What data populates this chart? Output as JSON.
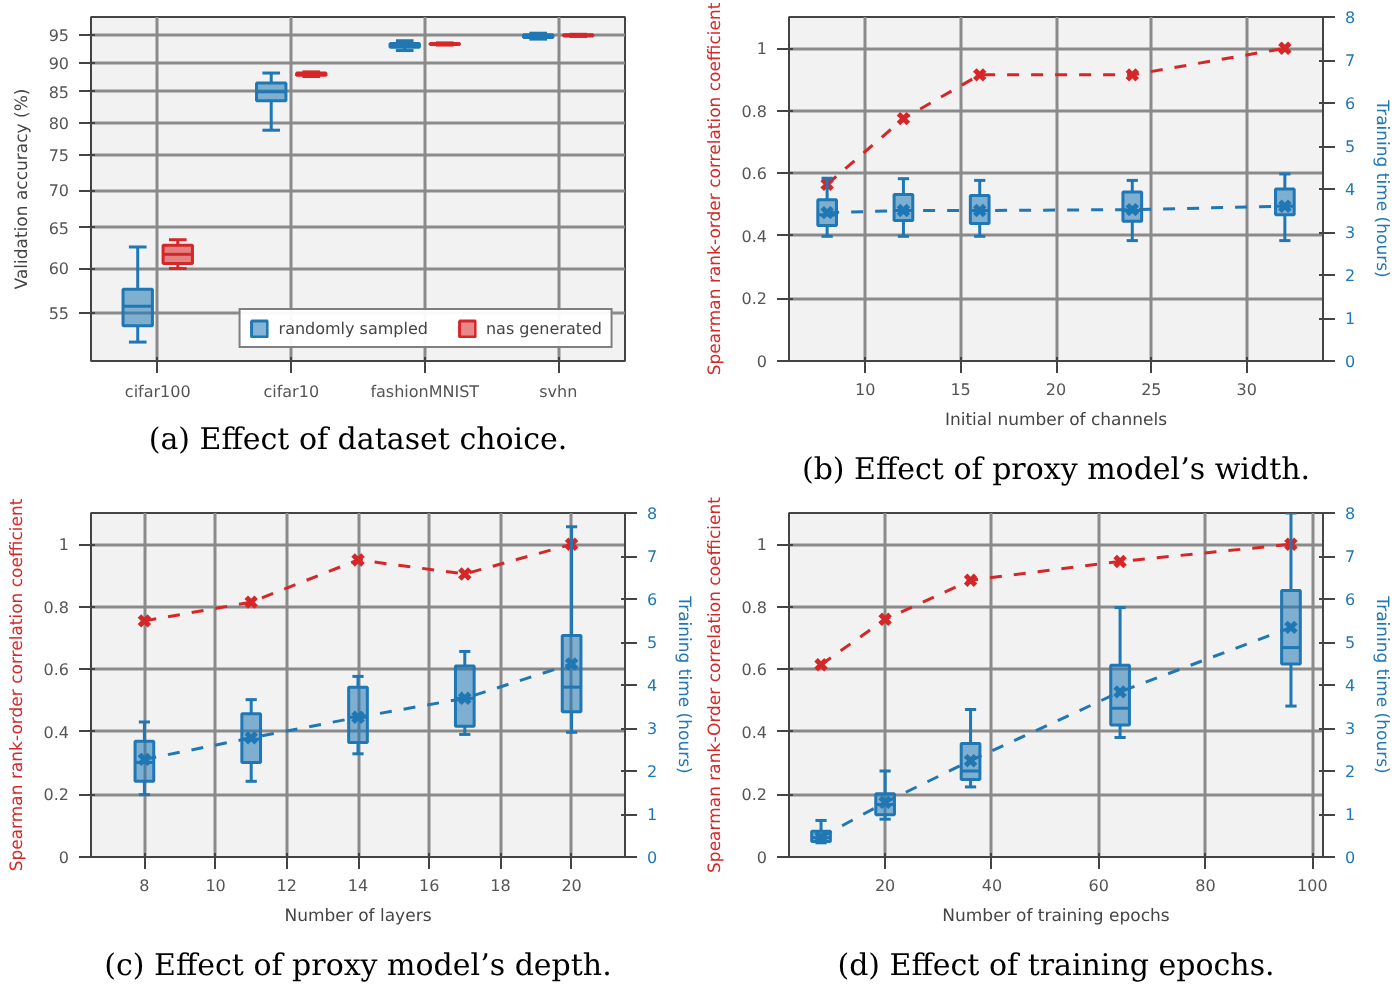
{
  "chart_data": [
    {
      "type": "box",
      "categories": [
        "cifar100",
        "cifar10",
        "fashionMNIST",
        "svhn"
      ],
      "ylabel": "Validation accuracy (%)",
      "ylim": [
        50,
        98.5
      ],
      "yticks": [
        55,
        60,
        65,
        70,
        75,
        80,
        85,
        90,
        95
      ],
      "log": true,
      "grid": true,
      "legend": "bottom right",
      "annotations": [
        "(a) Effect of dataset choice."
      ],
      "series": [
        {
          "name": "randomly sampled",
          "color": "#1f77b4",
          "boxes": [
            {
              "low": 51.9,
              "q1": 53.6,
              "median": 55.7,
              "q3": 57.6,
              "high": 62.6
            },
            {
              "low": 78.8,
              "q1": 83.5,
              "median": 85,
              "q3": 86.5,
              "high": 88.2
            },
            {
              "low": 92.2,
              "q1": 92.8,
              "median": 93.2,
              "q3": 93.5,
              "high": 94
            },
            {
              "low": 94.3,
              "q1": 94.6,
              "median": 94.9,
              "q3": 95.1,
              "high": 95.4
            }
          ]
        },
        {
          "name": "nas generated",
          "color": "#d62728",
          "boxes": [
            {
              "low": 60,
              "q1": 60.6,
              "median": 61.7,
              "q3": 62.8,
              "high": 63.5
            },
            {
              "low": 87.6,
              "q1": 87.8,
              "median": 88,
              "q3": 88.2,
              "high": 88.4
            },
            {
              "low": 93.2,
              "q1": 93.3,
              "median": 93.4,
              "q3": 93.5,
              "high": 93.6
            },
            {
              "low": 94.8,
              "q1": 94.9,
              "median": 95,
              "q3": 95.1,
              "high": 95.2
            }
          ]
        }
      ]
    },
    {
      "type": "line",
      "x": [
        8,
        12,
        16,
        24,
        32
      ],
      "xlim": [
        6,
        34
      ],
      "xticks": [
        10,
        15,
        20,
        25,
        30
      ],
      "ylim": [
        0,
        1.1
      ],
      "yticks": [
        0,
        0.2,
        0.4,
        0.6,
        0.8,
        1
      ],
      "y2lim": [
        0,
        8
      ],
      "y2ticks": [
        0,
        1,
        2,
        3,
        4,
        5,
        6,
        7,
        8
      ],
      "xlabel": "Initial number of channels",
      "ylabel": "Spearman rank-order correlation coefficient",
      "y2label": "Training time (hours)",
      "grid": true,
      "line_style": "dashed",
      "marker": "cross",
      "annotations": [
        "(b) Effect of proxy model’s width."
      ],
      "series": [
        {
          "color": "#d62728",
          "values": [
            0.565,
            0.775,
            0.915,
            0.915,
            1.0
          ]
        },
        {
          "type": "box",
          "axis": "y2",
          "color": "#1f77b4",
          "boxes": [
            {
              "low": 2.9,
              "q1": 3.15,
              "median": 3.4,
              "q3": 3.75,
              "high": 4.25
            },
            {
              "low": 2.9,
              "q1": 3.27,
              "median": 3.5,
              "q3": 3.87,
              "high": 4.24
            },
            {
              "low": 2.9,
              "q1": 3.2,
              "median": 3.5,
              "q3": 3.85,
              "high": 4.2
            },
            {
              "low": 2.8,
              "q1": 3.25,
              "median": 3.5,
              "q3": 3.93,
              "high": 4.2
            },
            {
              "low": 2.8,
              "q1": 3.4,
              "median": 3.6,
              "q3": 4.0,
              "high": 4.35
            }
          ]
        },
        {
          "axis": "y2",
          "color": "#1f77b4",
          "values": [
            3.45,
            3.5,
            3.5,
            3.52,
            3.6
          ]
        }
      ]
    },
    {
      "type": "line",
      "x": [
        8,
        11,
        14,
        17,
        20
      ],
      "xlim": [
        6.5,
        21.5
      ],
      "xticks": [
        8,
        10,
        12,
        14,
        16,
        18,
        20
      ],
      "ylim": [
        0,
        1.1
      ],
      "yticks": [
        0,
        0.2,
        0.4,
        0.6,
        0.8,
        1
      ],
      "y2lim": [
        0,
        8
      ],
      "y2ticks": [
        0,
        1,
        2,
        3,
        4,
        5,
        6,
        7,
        8
      ],
      "xlabel": "Number of layers",
      "ylabel": "Spearman rank-order correlation coefficient",
      "y2label": "Training time (hours)",
      "grid": true,
      "line_style": "dashed",
      "marker": "cross",
      "annotations": [
        "(c) Effect of proxy model’s depth."
      ],
      "series": [
        {
          "color": "#d62728",
          "values": [
            0.755,
            0.815,
            0.95,
            0.905,
            1.0
          ]
        },
        {
          "type": "box",
          "axis": "y2",
          "color": "#1f77b4",
          "boxes": [
            {
              "low": 1.45,
              "q1": 1.76,
              "median": 2.2,
              "q3": 2.69,
              "high": 3.14
            },
            {
              "low": 1.76,
              "q1": 2.2,
              "median": 2.74,
              "q3": 3.33,
              "high": 3.66
            },
            {
              "low": 2.4,
              "q1": 2.66,
              "median": 3.25,
              "q3": 3.95,
              "high": 4.2
            },
            {
              "low": 2.85,
              "q1": 3.04,
              "median": 3.69,
              "q3": 4.44,
              "high": 4.78
            },
            {
              "low": 2.9,
              "q1": 3.38,
              "median": 3.95,
              "q3": 5.15,
              "high": 7.68
            }
          ]
        },
        {
          "axis": "y2",
          "color": "#1f77b4",
          "values": [
            2.27,
            2.77,
            3.25,
            3.69,
            4.49
          ]
        }
      ]
    },
    {
      "type": "line",
      "x": [
        8,
        20,
        36,
        64,
        96
      ],
      "xlim": [
        2,
        102
      ],
      "xticks": [
        20,
        40,
        60,
        80,
        100
      ],
      "ylim": [
        0,
        1.1
      ],
      "yticks": [
        0,
        0.2,
        0.4,
        0.6,
        0.8,
        1
      ],
      "y2lim": [
        0,
        8
      ],
      "y2ticks": [
        0,
        1,
        2,
        3,
        4,
        5,
        6,
        7,
        8
      ],
      "xlabel": "Number of training epochs",
      "ylabel": "Spearman rank-Order correlation coefficient",
      "y2label": "Training time (hours)",
      "grid": true,
      "line_style": "dashed",
      "marker": "cross",
      "annotations": [
        "(d) Effect of training epochs."
      ],
      "series": [
        {
          "color": "#d62728",
          "values": [
            0.615,
            0.76,
            0.885,
            0.945,
            1.0
          ]
        },
        {
          "type": "box",
          "axis": "y2",
          "color": "#1f77b4",
          "boxes": [
            {
              "low": 0.33,
              "q1": 0.36,
              "median": 0.45,
              "q3": 0.6,
              "high": 0.85
            },
            {
              "low": 0.88,
              "q1": 0.98,
              "median": 1.22,
              "q3": 1.47,
              "high": 2.0
            },
            {
              "low": 1.63,
              "q1": 1.8,
              "median": 2.0,
              "q3": 2.64,
              "high": 3.43
            },
            {
              "low": 2.78,
              "q1": 3.07,
              "median": 3.46,
              "q3": 4.46,
              "high": 5.8
            },
            {
              "low": 3.51,
              "q1": 4.49,
              "median": 4.87,
              "q3": 6.2,
              "high": 8
            }
          ]
        },
        {
          "axis": "y2",
          "color": "#1f77b4",
          "values": [
            0.46,
            1.27,
            2.24,
            3.84,
            5.34
          ]
        }
      ]
    }
  ]
}
